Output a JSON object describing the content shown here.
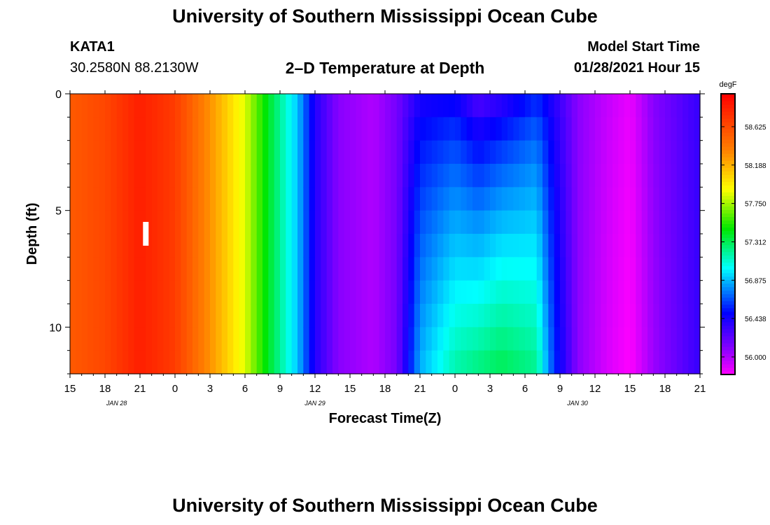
{
  "header": {
    "title": "University of Southern Mississippi Ocean Cube",
    "station_id": "KATA1",
    "station_coords": "30.2580N 88.2130W",
    "chart_title": "2–D Temperature at Depth",
    "model_start_label": "Model Start Time",
    "model_start_value": "01/28/2021 Hour 15"
  },
  "footer": {
    "title": "University of Southern Mississippi Ocean Cube"
  },
  "chart_data": {
    "type": "heatmap",
    "title": "2–D Temperature at Depth",
    "xlabel": "Forecast Time(Z)",
    "ylabel": "Depth (ft)",
    "units": "degF",
    "x_tick_labels": [
      "15",
      "18",
      "21",
      "0",
      "3",
      "6",
      "9",
      "12",
      "15",
      "18",
      "21",
      "0",
      "3",
      "6",
      "9",
      "12",
      "15",
      "18",
      "21"
    ],
    "x_date_labels": [
      {
        "label": "JAN  28",
        "hour_index": 4
      },
      {
        "label": "JAN  29",
        "hour_index": 21
      },
      {
        "label": "JAN  30",
        "hour_index": 43.5
      }
    ],
    "x_hours_span": 54,
    "y_tick_labels": [
      "0",
      "5",
      "10"
    ],
    "ylim": [
      0,
      12
    ],
    "depth_levels_ft": [
      0.5,
      1.5,
      2.5,
      3.5,
      4.5,
      5.5,
      6.5,
      7.5,
      8.5,
      9.5,
      10.5,
      11.5
    ],
    "colorbar": {
      "min": 55.8,
      "max": 59.0,
      "tick_values": [
        56.0,
        56.438,
        56.875,
        57.312,
        57.75,
        58.188,
        58.625
      ],
      "tick_labels": [
        "56.000",
        "56.438",
        "56.875",
        "57.312",
        "57.750",
        "58.188",
        "58.625"
      ]
    },
    "surface_profile": [
      {
        "hour": 0,
        "value": 58.55
      },
      {
        "hour": 3,
        "value": 58.65
      },
      {
        "hour": 6,
        "value": 58.85
      },
      {
        "hour": 9,
        "value": 58.7
      },
      {
        "hour": 12,
        "value": 58.3
      },
      {
        "hour": 15,
        "value": 57.85
      },
      {
        "hour": 17,
        "value": 57.4
      },
      {
        "hour": 19.5,
        "value": 56.9
      },
      {
        "hour": 21,
        "value": 56.4
      },
      {
        "hour": 23,
        "value": 56.1
      },
      {
        "hour": 26,
        "value": 56.0
      },
      {
        "hour": 28,
        "value": 56.15
      },
      {
        "hour": 30,
        "value": 56.45
      },
      {
        "hour": 33,
        "value": 56.5
      },
      {
        "hour": 35,
        "value": 56.3
      },
      {
        "hour": 37,
        "value": 56.4
      },
      {
        "hour": 40,
        "value": 56.6
      },
      {
        "hour": 41.5,
        "value": 56.4
      },
      {
        "hour": 43.5,
        "value": 56.1
      },
      {
        "hour": 46,
        "value": 55.95
      },
      {
        "hour": 48,
        "value": 55.85
      },
      {
        "hour": 50,
        "value": 56.1
      },
      {
        "hour": 54,
        "value": 56.35
      }
    ],
    "bottom_profile": [
      {
        "hour": 0,
        "value": 58.55
      },
      {
        "hour": 3,
        "value": 58.65
      },
      {
        "hour": 6,
        "value": 58.85
      },
      {
        "hour": 9,
        "value": 58.7
      },
      {
        "hour": 12,
        "value": 58.3
      },
      {
        "hour": 15,
        "value": 57.85
      },
      {
        "hour": 17,
        "value": 57.4
      },
      {
        "hour": 19.5,
        "value": 56.9
      },
      {
        "hour": 21,
        "value": 56.4
      },
      {
        "hour": 23,
        "value": 56.1
      },
      {
        "hour": 26,
        "value": 56.0
      },
      {
        "hour": 28,
        "value": 56.15
      },
      {
        "hour": 30,
        "value": 56.85
      },
      {
        "hour": 33,
        "value": 57.15
      },
      {
        "hour": 37,
        "value": 57.3
      },
      {
        "hour": 40,
        "value": 57.2
      },
      {
        "hour": 41.5,
        "value": 56.6
      },
      {
        "hour": 43.5,
        "value": 56.1
      },
      {
        "hour": 46,
        "value": 55.9
      },
      {
        "hour": 48,
        "value": 55.8
      },
      {
        "hour": 50,
        "value": 56.05
      },
      {
        "hour": 54,
        "value": 56.35
      }
    ],
    "marker": {
      "label": "I",
      "hour": 6.5,
      "depth_ft": 6.0
    }
  }
}
